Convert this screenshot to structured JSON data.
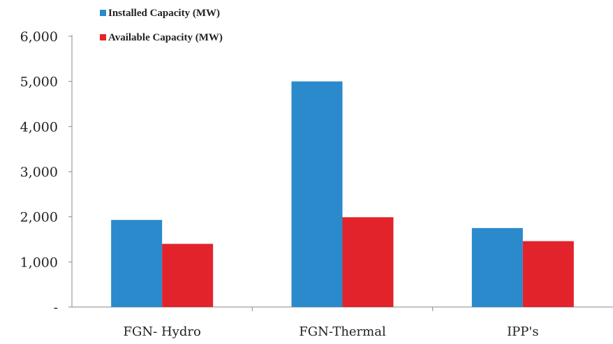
{
  "chart_data": {
    "type": "bar",
    "categories": [
      "FGN- Hydro",
      "FGN-Thermal",
      "IPP's"
    ],
    "series": [
      {
        "name": "Installed Capacity (MW)",
        "values": [
          1930,
          5000,
          1750
        ],
        "color": "#2a8acb"
      },
      {
        "name": "Available Capacity (MW)",
        "values": [
          1400,
          1990,
          1460
        ],
        "color": "#e2232b"
      }
    ],
    "ylim": [
      0,
      6000
    ],
    "yticks": [
      {
        "value": 0,
        "label": "-"
      },
      {
        "value": 1000,
        "label": "1,000"
      },
      {
        "value": 2000,
        "label": "2,000"
      },
      {
        "value": 3000,
        "label": "3,000"
      },
      {
        "value": 4000,
        "label": "4,000"
      },
      {
        "value": 5000,
        "label": "5,000"
      },
      {
        "value": 6000,
        "label": "6,000"
      }
    ],
    "grid": false,
    "legend_position": "top-left"
  }
}
